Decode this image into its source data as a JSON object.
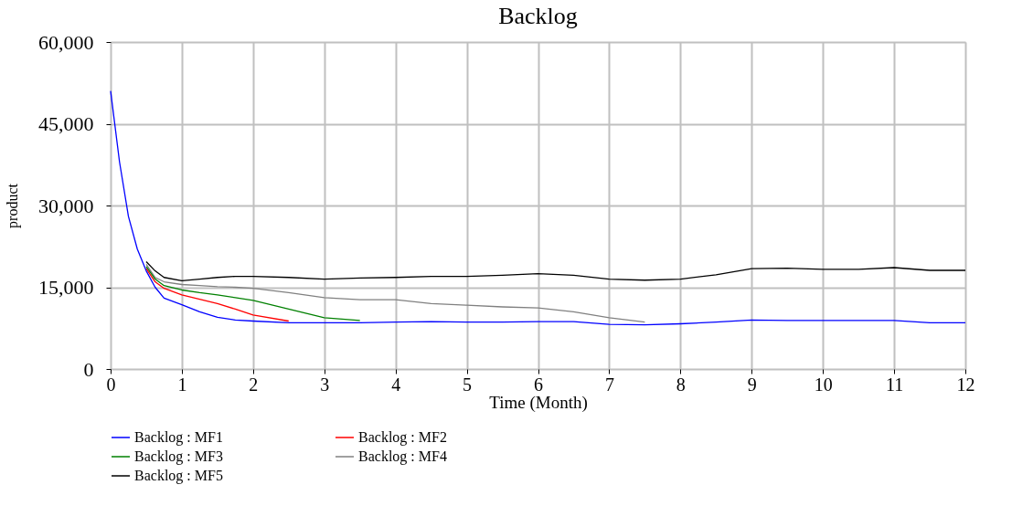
{
  "chart_data": {
    "type": "line",
    "title": "Backlog",
    "xlabel": "Time (Month)",
    "ylabel": "product",
    "xlim": [
      0,
      12
    ],
    "xticks": [
      0,
      1,
      2,
      3,
      4,
      5,
      6,
      7,
      8,
      9,
      10,
      11,
      12
    ],
    "ylim": [
      0,
      60000
    ],
    "yticks": [
      0,
      {
        "value": 15000,
        "label": "15,000"
      },
      {
        "value": 30000,
        "label": "30,000"
      },
      {
        "value": 45000,
        "label": "45,000"
      },
      {
        "value": 60000,
        "label": "60,000"
      }
    ],
    "grid": true,
    "legend": "bottom",
    "marker": "none",
    "line_style": "solid",
    "x": [
      0,
      0.125,
      0.25,
      0.375,
      0.5,
      0.625,
      0.75,
      1,
      1.25,
      1.5,
      1.75,
      2,
      2.5,
      3,
      3.5,
      4,
      4.5,
      5,
      5.5,
      6,
      6.5,
      7,
      7.5,
      8,
      8.5,
      9,
      9.5,
      10,
      10.5,
      11,
      11.5,
      12
    ],
    "series": [
      {
        "name": "Backlog : MF1",
        "color": "#0000ff",
        "values": [
          51000,
          38000,
          28000,
          22000,
          18000,
          15000,
          13000,
          11800,
          10500,
          9500,
          9000,
          8800,
          8500,
          8500,
          8500,
          8600,
          8700,
          8600,
          8600,
          8700,
          8700,
          8200,
          8100,
          8300,
          8600,
          9000,
          8900,
          8900,
          8900,
          8900,
          8500,
          8500
        ]
      },
      {
        "name": "Backlog : MF2",
        "color": "#ff0000",
        "values": [
          null,
          null,
          null,
          null,
          18400,
          16000,
          14800,
          13600,
          12800,
          12000,
          11000,
          9900,
          8800,
          null,
          null,
          null,
          null,
          null,
          null,
          null,
          null,
          null,
          null,
          null,
          null,
          null,
          null,
          null,
          null,
          null,
          null,
          null
        ]
      },
      {
        "name": "Backlog : MF3",
        "color": "#008000",
        "values": [
          null,
          null,
          null,
          null,
          18800,
          16500,
          15300,
          14500,
          14000,
          13600,
          13100,
          12600,
          11000,
          9400,
          8900,
          null,
          null,
          null,
          null,
          null,
          null,
          null,
          null,
          null,
          null,
          null,
          null,
          null,
          null,
          null,
          null,
          null
        ]
      },
      {
        "name": "Backlog : MF4",
        "color": "#808080",
        "values": [
          null,
          null,
          null,
          null,
          19200,
          16800,
          16000,
          15500,
          15300,
          15100,
          15000,
          14800,
          14000,
          13100,
          12700,
          12700,
          12000,
          11700,
          11400,
          11200,
          10500,
          9400,
          8600,
          null,
          null,
          null,
          null,
          null,
          null,
          null,
          null,
          null
        ]
      },
      {
        "name": "Backlog : MF5",
        "color": "#000000",
        "values": [
          null,
          null,
          null,
          null,
          19700,
          18000,
          16800,
          16200,
          16500,
          16800,
          17000,
          17000,
          16800,
          16500,
          16700,
          16800,
          17000,
          17000,
          17200,
          17500,
          17200,
          16500,
          16300,
          16500,
          17300,
          18400,
          18500,
          18300,
          18300,
          18600,
          18100,
          18100
        ]
      }
    ]
  }
}
